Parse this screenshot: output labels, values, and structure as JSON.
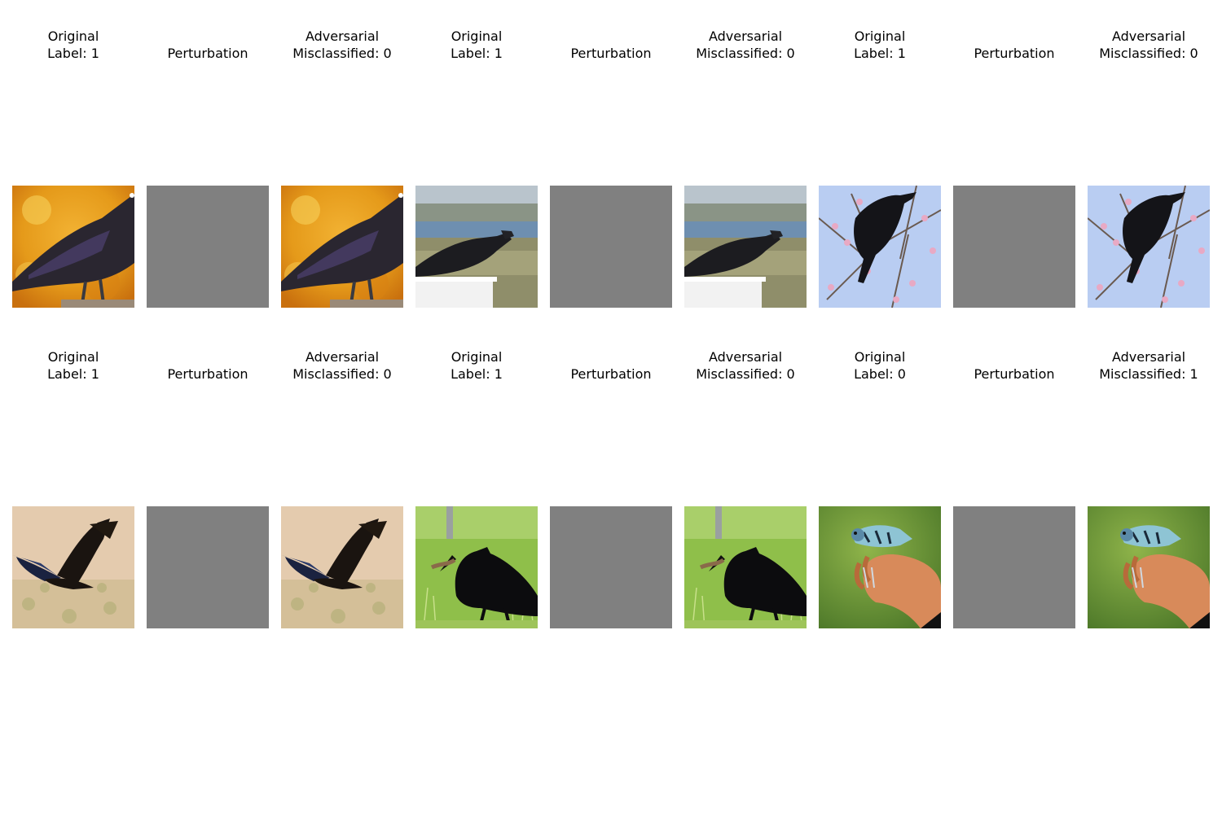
{
  "figure": {
    "rows": [
      {
        "panels": [
          {
            "title_line1": "Original",
            "title_line2": "Label: 1",
            "kind": "image",
            "scene": "crow-autumn"
          },
          {
            "title_line1": "",
            "title_line2": "Perturbation",
            "kind": "perturbation",
            "fill": "#808080"
          },
          {
            "title_line1": "Adversarial",
            "title_line2": "Misclassified: 0",
            "kind": "image",
            "scene": "crow-autumn"
          },
          {
            "title_line1": "Original",
            "title_line2": "Label: 1",
            "kind": "image",
            "scene": "crow-shore"
          },
          {
            "title_line1": "",
            "title_line2": "Perturbation",
            "kind": "perturbation",
            "fill": "#808080"
          },
          {
            "title_line1": "Adversarial",
            "title_line2": "Misclassified: 0",
            "kind": "image",
            "scene": "crow-shore"
          },
          {
            "title_line1": "Original",
            "title_line2": "Label: 1",
            "kind": "image",
            "scene": "crow-blossom"
          },
          {
            "title_line1": "",
            "title_line2": "Perturbation",
            "kind": "perturbation",
            "fill": "#808080"
          },
          {
            "title_line1": "Adversarial",
            "title_line2": "Misclassified: 0",
            "kind": "image",
            "scene": "crow-blossom"
          }
        ]
      },
      {
        "panels": [
          {
            "title_line1": "Original",
            "title_line2": "Label: 1",
            "kind": "image",
            "scene": "crow-flying"
          },
          {
            "title_line1": "",
            "title_line2": "Perturbation",
            "kind": "perturbation",
            "fill": "#808080"
          },
          {
            "title_line1": "Adversarial",
            "title_line2": "Misclassified: 0",
            "kind": "image",
            "scene": "crow-flying"
          },
          {
            "title_line1": "Original",
            "title_line2": "Label: 1",
            "kind": "image",
            "scene": "crow-grass"
          },
          {
            "title_line1": "",
            "title_line2": "Perturbation",
            "kind": "perturbation",
            "fill": "#808080"
          },
          {
            "title_line1": "Adversarial",
            "title_line2": "Misclassified: 0",
            "kind": "image",
            "scene": "crow-grass"
          },
          {
            "title_line1": "Original",
            "title_line2": "Label: 0",
            "kind": "image",
            "scene": "warbler-hand"
          },
          {
            "title_line1": "",
            "title_line2": "Perturbation",
            "kind": "perturbation",
            "fill": "#808080"
          },
          {
            "title_line1": "Adversarial",
            "title_line2": "Misclassified: 1",
            "kind": "image",
            "scene": "warbler-hand"
          }
        ]
      }
    ]
  }
}
